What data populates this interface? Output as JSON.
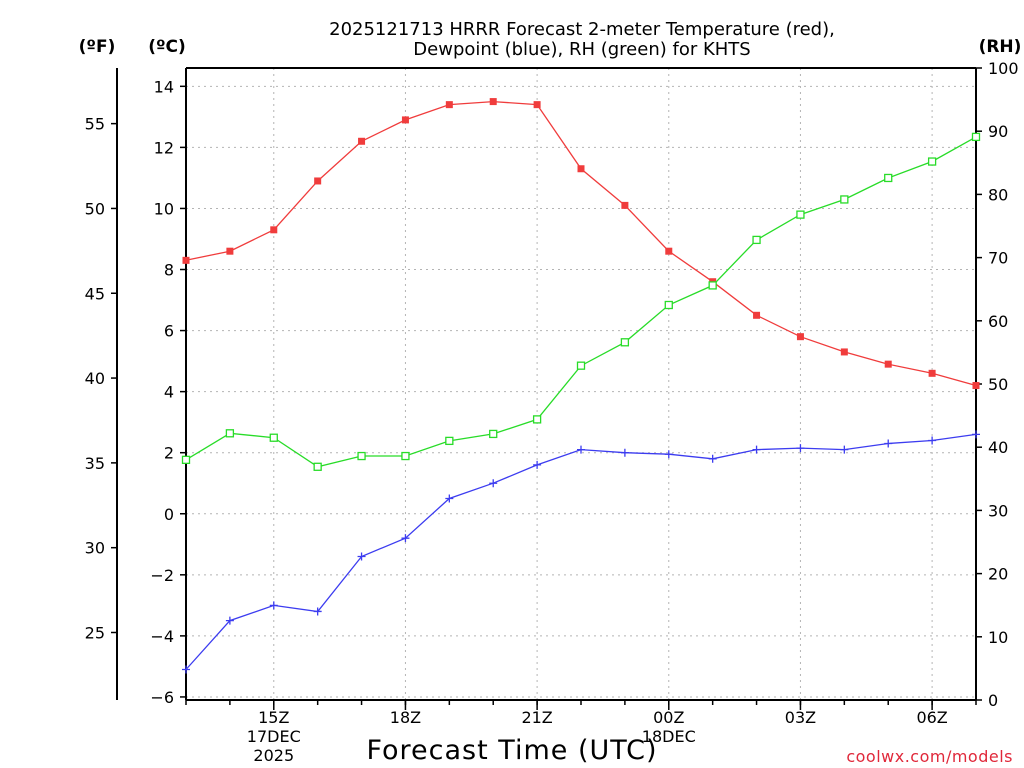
{
  "chart_data": {
    "type": "line",
    "title_lines": [
      "2025121713 HRRR Forecast 2-meter Temperature (red),",
      "Dewpoint (blue), RH (green) for KHTS"
    ],
    "units": {
      "fahrenheit": "(ºF)",
      "celsius": "(ºC)",
      "rh": "(RH)"
    },
    "xlabel": "Forecast Time (UTC)",
    "x_hours": [
      13,
      14,
      15,
      16,
      17,
      18,
      19,
      20,
      21,
      22,
      23,
      24,
      25,
      26,
      27,
      28,
      29,
      30,
      31
    ],
    "x_ticks": [
      {
        "hour": 15,
        "label": "15Z",
        "date": "17DEC",
        "year": "2025"
      },
      {
        "hour": 18,
        "label": "18Z"
      },
      {
        "hour": 21,
        "label": "21Z"
      },
      {
        "hour": 24,
        "label": "00Z",
        "date": "18DEC"
      },
      {
        "hour": 27,
        "label": "03Z"
      },
      {
        "hour": 30,
        "label": "06Z"
      }
    ],
    "ylim_celsius": [
      -6.1,
      14.6
    ],
    "ylim_rh": [
      0,
      100
    ],
    "yticks_celsius": [
      "14",
      "12",
      "10",
      "8",
      "6",
      "4",
      "2",
      "0",
      "−2",
      "−4",
      "−6"
    ],
    "yticks_celsius_values": [
      14,
      12,
      10,
      8,
      6,
      4,
      2,
      0,
      -2,
      -4,
      -6
    ],
    "yticks_fahrenheit": [
      "55",
      "50",
      "45",
      "40",
      "35",
      "30",
      "25"
    ],
    "yticks_fahrenheit_values": [
      55,
      50,
      45,
      40,
      35,
      30,
      25
    ],
    "yticks_rh": [
      "100",
      "90",
      "80",
      "70",
      "60",
      "50",
      "40",
      "30",
      "20",
      "10",
      "0"
    ],
    "yticks_rh_values": [
      100,
      90,
      80,
      70,
      60,
      50,
      40,
      30,
      20,
      10,
      0
    ],
    "grid": true,
    "series": [
      {
        "name": "Temperature",
        "axis": "celsius",
        "color": "#f03c3c",
        "marker": "filled-square",
        "values": [
          8.3,
          8.6,
          9.3,
          10.9,
          12.2,
          12.9,
          13.4,
          13.5,
          13.4,
          11.3,
          10.1,
          8.6,
          7.6,
          6.5,
          5.8,
          5.3,
          4.9,
          4.6,
          4.2
        ]
      },
      {
        "name": "Dewpoint",
        "axis": "celsius",
        "color": "#3c3cf0",
        "marker": "plus",
        "values": [
          -5.1,
          -3.5,
          -3.0,
          -3.2,
          -1.4,
          -0.8,
          0.5,
          1.0,
          1.6,
          2.1,
          2.0,
          1.95,
          1.8,
          2.1,
          2.15,
          2.1,
          2.3,
          2.4,
          2.6
        ]
      },
      {
        "name": "RH",
        "axis": "rh",
        "color": "#28dc28",
        "marker": "open-square",
        "values": [
          38,
          42.2,
          41.5,
          36.9,
          38.6,
          38.6,
          41,
          42.1,
          44.4,
          52.9,
          56.6,
          62.5,
          65.6,
          72.8,
          76.8,
          79.2,
          82.6,
          85.2,
          89.1
        ]
      }
    ]
  },
  "watermark": "coolwx.com/models"
}
